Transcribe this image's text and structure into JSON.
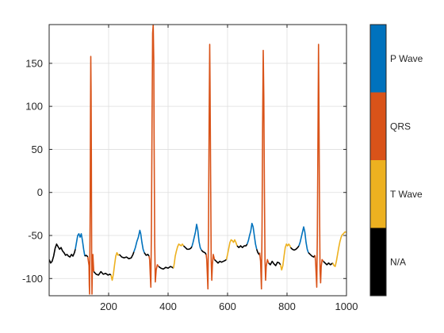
{
  "chart_data": {
    "type": "line",
    "xlim": [
      0,
      1000
    ],
    "ylim": [
      -120,
      195
    ],
    "x_ticks": [
      200,
      400,
      600,
      800,
      1000
    ],
    "y_ticks": [
      -100,
      -50,
      0,
      50,
      100,
      150
    ],
    "grid": true,
    "colorbar": {
      "position": "right",
      "categories": [
        {
          "label": "P Wave",
          "color": "#0072BD"
        },
        {
          "label": "QRS",
          "color": "#D95319"
        },
        {
          "label": "T Wave",
          "color": "#EDB120"
        },
        {
          "label": "N/A",
          "color": "#000000"
        }
      ]
    },
    "segments": [
      {
        "label": "N/A",
        "points": [
          [
            0,
            -78
          ],
          [
            5,
            -82
          ],
          [
            10,
            -80
          ],
          [
            15,
            -74
          ],
          [
            20,
            -65
          ],
          [
            25,
            -60
          ],
          [
            30,
            -63
          ],
          [
            35,
            -66
          ],
          [
            40,
            -64
          ],
          [
            45,
            -68
          ],
          [
            50,
            -70
          ],
          [
            55,
            -73
          ],
          [
            60,
            -72
          ],
          [
            65,
            -74
          ],
          [
            70,
            -75
          ],
          [
            75,
            -72
          ],
          [
            80,
            -74
          ],
          [
            85,
            -70
          ],
          [
            88,
            -66
          ]
        ]
      },
      {
        "label": "P Wave",
        "points": [
          [
            88,
            -66
          ],
          [
            92,
            -58
          ],
          [
            96,
            -50
          ],
          [
            100,
            -48
          ],
          [
            104,
            -52
          ],
          [
            108,
            -48
          ],
          [
            112,
            -56
          ],
          [
            116,
            -66
          ],
          [
            120,
            -74
          ]
        ]
      },
      {
        "label": "N/A",
        "points": [
          [
            120,
            -74
          ],
          [
            124,
            -73
          ],
          [
            128,
            -74
          ],
          [
            130,
            -75
          ]
        ]
      },
      {
        "label": "QRS",
        "points": [
          [
            130,
            -75
          ],
          [
            132,
            -80
          ],
          [
            134,
            -85
          ],
          [
            135,
            -108
          ],
          [
            136,
            -118
          ],
          [
            138,
            -15
          ],
          [
            139,
            90
          ],
          [
            140,
            158
          ],
          [
            141,
            118
          ],
          [
            142,
            40
          ],
          [
            143,
            -80
          ],
          [
            144,
            -118
          ],
          [
            145,
            -95
          ],
          [
            147,
            -72
          ],
          [
            150,
            -92
          ]
        ]
      },
      {
        "label": "N/A",
        "points": [
          [
            150,
            -92
          ],
          [
            158,
            -95
          ],
          [
            166,
            -96
          ],
          [
            174,
            -92
          ],
          [
            182,
            -95
          ],
          [
            190,
            -94
          ],
          [
            198,
            -96
          ],
          [
            204,
            -95
          ],
          [
            208,
            -96
          ]
        ]
      },
      {
        "label": "T Wave",
        "points": [
          [
            208,
            -96
          ],
          [
            212,
            -102
          ],
          [
            216,
            -95
          ],
          [
            220,
            -84
          ],
          [
            224,
            -74
          ],
          [
            228,
            -70
          ],
          [
            232,
            -73
          ],
          [
            236,
            -72
          ]
        ]
      },
      {
        "label": "N/A",
        "points": [
          [
            236,
            -72
          ],
          [
            244,
            -75
          ],
          [
            252,
            -76
          ],
          [
            260,
            -75
          ],
          [
            268,
            -77
          ],
          [
            276,
            -76
          ],
          [
            282,
            -72
          ],
          [
            285,
            -69
          ]
        ]
      },
      {
        "label": "P Wave",
        "points": [
          [
            285,
            -69
          ],
          [
            290,
            -64
          ],
          [
            295,
            -57
          ],
          [
            300,
            -52
          ],
          [
            305,
            -44
          ],
          [
            308,
            -48
          ],
          [
            312,
            -58
          ],
          [
            316,
            -66
          ],
          [
            320,
            -70
          ]
        ]
      },
      {
        "label": "N/A",
        "points": [
          [
            320,
            -70
          ],
          [
            326,
            -73
          ],
          [
            332,
            -72
          ],
          [
            336,
            -74
          ]
        ]
      },
      {
        "label": "QRS",
        "points": [
          [
            336,
            -74
          ],
          [
            338,
            -78
          ],
          [
            340,
            -95
          ],
          [
            342,
            -110
          ],
          [
            344,
            -40
          ],
          [
            346,
            80
          ],
          [
            348,
            185
          ],
          [
            350,
            195
          ],
          [
            352,
            150
          ],
          [
            353,
            60
          ],
          [
            355,
            -60
          ],
          [
            357,
            -104
          ],
          [
            360,
            -90
          ],
          [
            364,
            -84
          ],
          [
            368,
            -86
          ]
        ]
      },
      {
        "label": "N/A",
        "points": [
          [
            368,
            -86
          ],
          [
            376,
            -88
          ],
          [
            384,
            -89
          ],
          [
            392,
            -87
          ],
          [
            400,
            -88
          ],
          [
            408,
            -86
          ],
          [
            414,
            -87
          ],
          [
            418,
            -88
          ]
        ]
      },
      {
        "label": "T Wave",
        "points": [
          [
            418,
            -88
          ],
          [
            421,
            -82
          ],
          [
            424,
            -74
          ],
          [
            428,
            -68
          ],
          [
            432,
            -63
          ],
          [
            436,
            -60
          ],
          [
            440,
            -61
          ],
          [
            444,
            -62
          ],
          [
            448,
            -60
          ],
          [
            452,
            -62
          ]
        ]
      },
      {
        "label": "N/A",
        "points": [
          [
            452,
            -62
          ],
          [
            458,
            -64
          ],
          [
            464,
            -66
          ],
          [
            470,
            -66
          ],
          [
            476,
            -65
          ],
          [
            480,
            -63
          ]
        ]
      },
      {
        "label": "P Wave",
        "points": [
          [
            480,
            -63
          ],
          [
            484,
            -58
          ],
          [
            488,
            -52
          ],
          [
            492,
            -46
          ],
          [
            496,
            -37
          ],
          [
            500,
            -44
          ],
          [
            504,
            -57
          ],
          [
            508,
            -64
          ],
          [
            512,
            -67
          ]
        ]
      },
      {
        "label": "N/A",
        "points": [
          [
            512,
            -67
          ],
          [
            518,
            -69
          ],
          [
            524,
            -70
          ],
          [
            528,
            -72
          ]
        ]
      },
      {
        "label": "QRS",
        "points": [
          [
            528,
            -72
          ],
          [
            530,
            -78
          ],
          [
            532,
            -95
          ],
          [
            534,
            -112
          ],
          [
            536,
            -40
          ],
          [
            538,
            80
          ],
          [
            540,
            172
          ],
          [
            541,
            130
          ],
          [
            543,
            20
          ],
          [
            545,
            -80
          ],
          [
            547,
            -102
          ],
          [
            549,
            -84
          ],
          [
            552,
            -72
          ],
          [
            556,
            -78
          ]
        ]
      },
      {
        "label": "N/A",
        "points": [
          [
            556,
            -78
          ],
          [
            562,
            -80
          ],
          [
            568,
            -82
          ],
          [
            574,
            -80
          ],
          [
            580,
            -81
          ],
          [
            586,
            -80
          ],
          [
            592,
            -79
          ],
          [
            596,
            -78
          ]
        ]
      },
      {
        "label": "T Wave",
        "points": [
          [
            596,
            -78
          ],
          [
            600,
            -72
          ],
          [
            604,
            -65
          ],
          [
            608,
            -58
          ],
          [
            612,
            -55
          ],
          [
            616,
            -56
          ],
          [
            620,
            -58
          ],
          [
            624,
            -55
          ],
          [
            628,
            -58
          ],
          [
            632,
            -62
          ]
        ]
      },
      {
        "label": "N/A",
        "points": [
          [
            632,
            -62
          ],
          [
            638,
            -64
          ],
          [
            644,
            -62
          ],
          [
            650,
            -64
          ],
          [
            656,
            -62
          ],
          [
            662,
            -62
          ],
          [
            666,
            -60
          ]
        ]
      },
      {
        "label": "P Wave",
        "points": [
          [
            666,
            -60
          ],
          [
            670,
            -56
          ],
          [
            674,
            -50
          ],
          [
            678,
            -45
          ],
          [
            682,
            -36
          ],
          [
            686,
            -40
          ],
          [
            690,
            -50
          ],
          [
            694,
            -60
          ],
          [
            698,
            -66
          ]
        ]
      },
      {
        "label": "N/A",
        "points": [
          [
            698,
            -66
          ],
          [
            702,
            -70
          ],
          [
            706,
            -72
          ],
          [
            708,
            -70
          ]
        ]
      },
      {
        "label": "QRS",
        "points": [
          [
            708,
            -70
          ],
          [
            711,
            -80
          ],
          [
            714,
            -112
          ],
          [
            716,
            -40
          ],
          [
            718,
            80
          ],
          [
            720,
            165
          ],
          [
            722,
            110
          ],
          [
            724,
            0
          ],
          [
            726,
            -80
          ],
          [
            728,
            -102
          ],
          [
            730,
            -86
          ],
          [
            734,
            -78
          ],
          [
            738,
            -82
          ]
        ]
      },
      {
        "label": "N/A",
        "points": [
          [
            738,
            -82
          ],
          [
            744,
            -84
          ],
          [
            750,
            -80
          ],
          [
            756,
            -83
          ],
          [
            762,
            -85
          ],
          [
            768,
            -81
          ],
          [
            774,
            -82
          ],
          [
            778,
            -84
          ]
        ]
      },
      {
        "label": "T Wave",
        "points": [
          [
            778,
            -84
          ],
          [
            782,
            -90
          ],
          [
            786,
            -85
          ],
          [
            790,
            -74
          ],
          [
            794,
            -64
          ],
          [
            798,
            -60
          ],
          [
            802,
            -62
          ],
          [
            806,
            -60
          ],
          [
            810,
            -62
          ],
          [
            812,
            -64
          ]
        ]
      },
      {
        "label": "N/A",
        "points": [
          [
            812,
            -64
          ],
          [
            818,
            -66
          ],
          [
            824,
            -67
          ],
          [
            830,
            -66
          ],
          [
            836,
            -64
          ],
          [
            840,
            -62
          ]
        ]
      },
      {
        "label": "P Wave",
        "points": [
          [
            840,
            -62
          ],
          [
            844,
            -58
          ],
          [
            848,
            -52
          ],
          [
            852,
            -46
          ],
          [
            856,
            -40
          ],
          [
            860,
            -46
          ],
          [
            864,
            -58
          ],
          [
            868,
            -66
          ],
          [
            872,
            -70
          ]
        ]
      },
      {
        "label": "N/A",
        "points": [
          [
            872,
            -70
          ],
          [
            878,
            -72
          ],
          [
            884,
            -74
          ],
          [
            890,
            -75
          ],
          [
            894,
            -73
          ]
        ]
      },
      {
        "label": "QRS",
        "points": [
          [
            894,
            -73
          ],
          [
            896,
            -80
          ],
          [
            898,
            -95
          ],
          [
            900,
            -110
          ],
          [
            902,
            -50
          ],
          [
            904,
            60
          ],
          [
            906,
            172
          ],
          [
            907,
            120
          ],
          [
            909,
            0
          ],
          [
            911,
            -90
          ],
          [
            913,
            -105
          ],
          [
            915,
            -86
          ],
          [
            918,
            -78
          ],
          [
            922,
            -80
          ]
        ]
      },
      {
        "label": "N/A",
        "points": [
          [
            922,
            -80
          ],
          [
            928,
            -82
          ],
          [
            934,
            -84
          ],
          [
            940,
            -82
          ],
          [
            946,
            -84
          ],
          [
            950,
            -83
          ],
          [
            954,
            -82
          ]
        ]
      },
      {
        "label": "T Wave",
        "points": [
          [
            954,
            -82
          ],
          [
            958,
            -85
          ],
          [
            962,
            -86
          ],
          [
            966,
            -80
          ],
          [
            970,
            -72
          ],
          [
            974,
            -64
          ],
          [
            978,
            -57
          ],
          [
            982,
            -52
          ],
          [
            986,
            -49
          ],
          [
            990,
            -48
          ],
          [
            994,
            -46
          ],
          [
            1000,
            -46
          ]
        ]
      }
    ]
  }
}
